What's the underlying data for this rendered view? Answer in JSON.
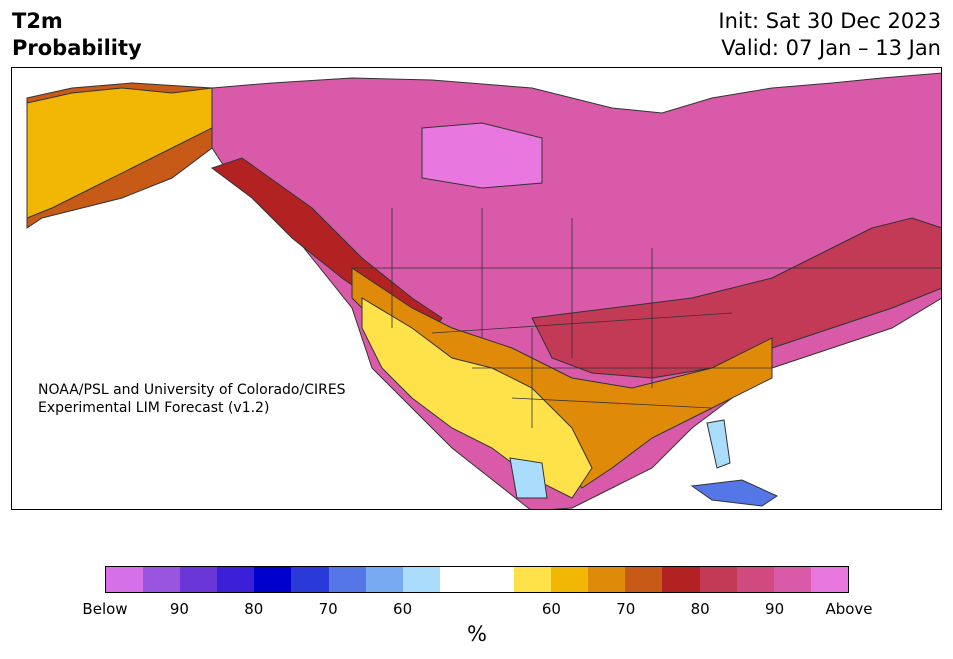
{
  "title": {
    "left_line1": "T2m",
    "left_line2": "Probability",
    "init": "Init: Sat 30 Dec 2023",
    "valid": "Valid: 07 Jan – 13 Jan"
  },
  "credit": {
    "line1": "NOAA/PSL and University of Colorado/CIRES",
    "line2": "Experimental LIM Forecast (v1.2)"
  },
  "colorbar": {
    "colors": [
      "#d670e8",
      "#9a55e0",
      "#6a35d6",
      "#3a1fd6",
      "#0000cc",
      "#2a3ad8",
      "#5576e6",
      "#78aaf2",
      "#aadcfb",
      "#ffffff",
      "#ffffff",
      "#ffe14a",
      "#f2b705",
      "#e08a0a",
      "#c85a18",
      "#b22222",
      "#c23a55",
      "#d04a80",
      "#d85aa8",
      "#e878e0"
    ],
    "ticks": [
      "Below",
      "90",
      "80",
      "70",
      "60",
      "60",
      "70",
      "80",
      "90",
      "Above"
    ],
    "unit": "%"
  },
  "map": {
    "colors": {
      "ocean": "#ffffff",
      "pink": "#d85aa8",
      "magenta": "#e878e0",
      "rose": "#d04a80",
      "crimson": "#c23a55",
      "red": "#b22222",
      "rust": "#c85a18",
      "orange": "#e08a0a",
      "gold": "#f2b705",
      "yellow": "#ffe14a",
      "lightblue": "#aadcfb",
      "blue": "#5576e6",
      "border": "#333333"
    }
  }
}
